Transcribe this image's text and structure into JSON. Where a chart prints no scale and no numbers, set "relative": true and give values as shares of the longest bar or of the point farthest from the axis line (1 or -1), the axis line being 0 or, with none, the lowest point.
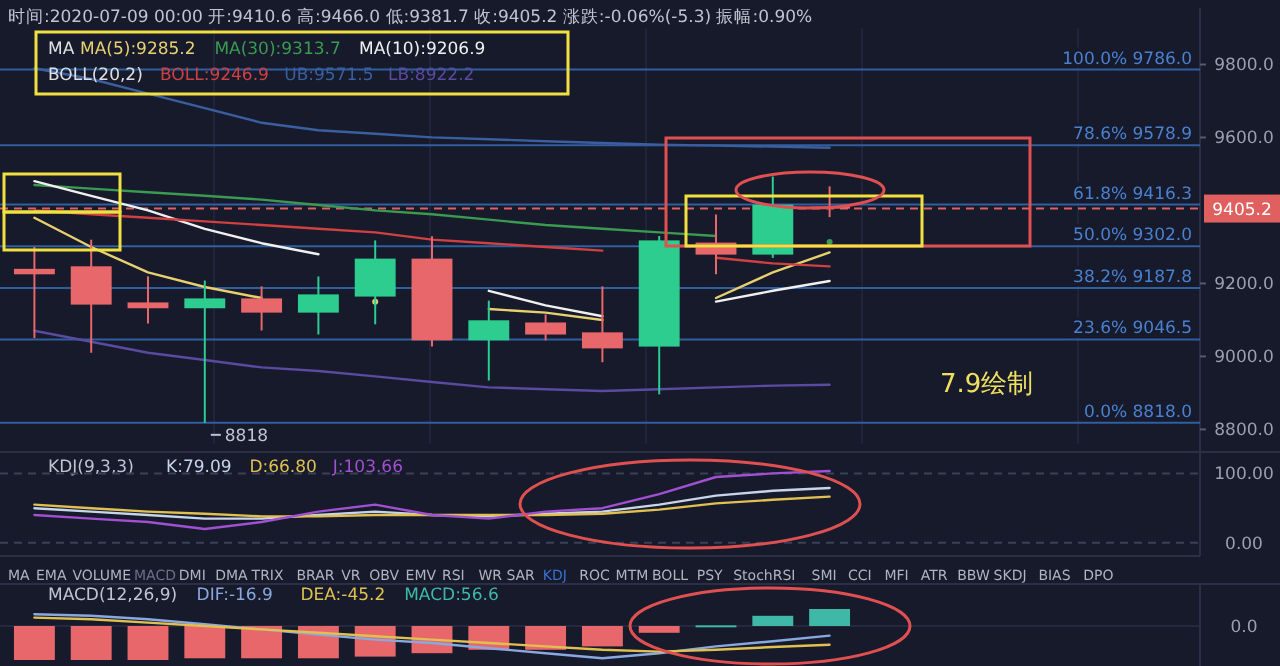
{
  "chart_data": [
    {
      "type": "candlestick",
      "title": "时间:2020-07-09 00:00 开:9410.6 高:9466.0 低:9381.7 收:9405.2 涨跌:-0.06%(-5.3) 振幅:0.90%",
      "categories": [
        null,
        null,
        null,
        null,
        null,
        null,
        null,
        null,
        null,
        null,
        null,
        null,
        null,
        null,
        null
      ],
      "ohlc": [
        [
          9240,
          9300,
          9050,
          9225
        ],
        [
          9247,
          9320,
          9010,
          9142
        ],
        [
          9148,
          9220,
          9090,
          9132
        ],
        [
          9132,
          9208,
          8818,
          9159
        ],
        [
          9159,
          9192,
          9071,
          9120
        ],
        [
          9120,
          9219,
          9060,
          9170
        ],
        [
          9164,
          9318,
          9088,
          9268
        ],
        [
          9268,
          9329,
          9027,
          9044
        ],
        [
          9044,
          9153,
          8934,
          9099
        ],
        [
          9093,
          9115,
          9044,
          9060
        ],
        [
          9066,
          9192,
          8984,
          9022
        ],
        [
          9027,
          9330,
          8896,
          9318
        ],
        [
          9312,
          9389,
          9225,
          9279
        ],
        [
          9279,
          9493,
          9270,
          9416
        ],
        [
          9410.6,
          9466.0,
          9381.7,
          9405.2
        ]
      ],
      "colors": [
        "#e8676a",
        "#e8676a",
        "#e8676a",
        "#2dcc8f",
        "#e8676a",
        "#2dcc8f",
        "#2dcc8f",
        "#e8676a",
        "#2dcc8f",
        "#e8676a",
        "#e8676a",
        "#2dcc8f",
        "#e8676a",
        "#2dcc8f",
        "#e8676a"
      ],
      "series": [
        {
          "name": "MA(5):9285.2",
          "type": "line",
          "color": "#e8d070",
          "values": [
            9380,
            9300,
            9230,
            9190,
            9160,
            null,
            9150,
            null,
            9130,
            9120,
            9100,
            null,
            9160,
            9230,
            9285.2
          ]
        },
        {
          "name": "MA(30):9313.7",
          "type": "line",
          "color": "#3a9a50",
          "values": [
            9470,
            9460,
            9450,
            9440,
            9430,
            9415,
            9400,
            9390,
            9375,
            9360,
            9350,
            9340,
            9330,
            null,
            9313.7
          ]
        },
        {
          "name": "MA(10):9206.9",
          "type": "line",
          "color": "#f0f0f0",
          "values": [
            9480,
            9440,
            9400,
            9350,
            9310,
            9280,
            null,
            null,
            9180,
            9140,
            9110,
            null,
            9150,
            9180,
            9206.9
          ]
        },
        {
          "name": "BOLL:9246.9",
          "type": "line",
          "color": "#d04040",
          "values": [
            9400,
            9390,
            9380,
            9370,
            9360,
            9350,
            9340,
            9320,
            9310,
            9300,
            9290,
            null,
            9270,
            9255,
            9246.9
          ]
        },
        {
          "name": "UB:9571.5",
          "type": "line",
          "color": "#3a5fa0",
          "values": [
            9790,
            9760,
            9720,
            9680,
            9640,
            9620,
            9610,
            9600,
            9595,
            9590,
            9585,
            9580,
            9578,
            9575,
            9571.5
          ]
        },
        {
          "name": "LB:8922.2",
          "type": "line",
          "color": "#5a4aa0",
          "values": [
            9070,
            9040,
            9010,
            8990,
            8970,
            8960,
            8945,
            8930,
            8915,
            8910,
            8905,
            8910,
            8915,
            8920,
            8922.2
          ]
        }
      ],
      "ylim": [
        8760,
        9900
      ],
      "yticks": [
        {
          "value": 8800,
          "label": "8800.0"
        },
        {
          "value": 9000,
          "label": "9000.0"
        },
        {
          "value": 9200,
          "label": "9200.0"
        },
        {
          "value": 9600,
          "label": "9600.0"
        },
        {
          "value": 9800,
          "label": "9800.0"
        }
      ],
      "ref_lines": [
        {
          "axis": "y",
          "value": 9786,
          "label": "100.0% 9786.0",
          "color": "#2f5f9f"
        },
        {
          "axis": "y",
          "value": 9578.9,
          "label": "78.6% 9578.9",
          "color": "#2f5f9f"
        },
        {
          "axis": "y",
          "value": 9416.3,
          "label": "61.8% 9416.3",
          "color": "#2f5f9f"
        },
        {
          "axis": "y",
          "value": 9302.0,
          "label": "50.0% 9302.0",
          "color": "#2f5f9f"
        },
        {
          "axis": "y",
          "value": 9187.8,
          "label": "38.2% 9187.8",
          "color": "#2f5f9f"
        },
        {
          "axis": "y",
          "value": 9046.5,
          "label": "23.6% 9046.5",
          "color": "#2f5f9f"
        },
        {
          "axis": "y",
          "value": 8818.0,
          "label": "0.0% 8818.0",
          "color": "#2f5f9f"
        },
        {
          "axis": "y",
          "value": 9405.2,
          "label": "9405.2",
          "color": "#e06060",
          "line_style": "dashed"
        }
      ],
      "annotations": [
        "MA",
        "BOLL(20,2)",
        {
          "text": "8818",
          "y": 8818
        },
        "7.9绘制"
      ],
      "legend": "top",
      "grid": "x"
    },
    {
      "type": "line",
      "title": "KDJ(9,3,3)",
      "categories": [
        null,
        null,
        null,
        null,
        null,
        null,
        null,
        null,
        null,
        null,
        null,
        null,
        null,
        null,
        null
      ],
      "series": [
        {
          "name": "K:79.09",
          "color": "#c8d4ea",
          "values": [
            50,
            45,
            40,
            35,
            35,
            40,
            45,
            40,
            38,
            42,
            45,
            55,
            68,
            75,
            79.09
          ]
        },
        {
          "name": "D:66.80",
          "color": "#e0c050",
          "values": [
            55,
            50,
            45,
            42,
            38,
            38,
            40,
            40,
            40,
            40,
            42,
            48,
            57,
            62,
            66.8
          ]
        },
        {
          "name": "J:103.66",
          "color": "#a050d0",
          "values": [
            40,
            35,
            30,
            20,
            30,
            45,
            55,
            40,
            35,
            45,
            50,
            70,
            95,
            100,
            103.66
          ]
        }
      ],
      "ylim": [
        -19,
        131
      ],
      "yticks": [
        {
          "value": 0,
          "label": "0.00"
        },
        {
          "value": 100,
          "label": "100.00"
        }
      ],
      "annotations": [
        "MA",
        "EMA",
        "VOLUME",
        "MACD",
        "DMI",
        "DMA",
        "TRIX",
        "BRAR",
        "VR",
        "OBV",
        "EMV",
        "RSI",
        "WR",
        "SAR",
        "KDJ",
        "ROC",
        "MTM",
        "BOLL",
        "PSY",
        "StochRSI",
        "SMI",
        "CCI",
        "MFI",
        "ATR",
        "BBW",
        "SKDJ",
        "BIAS",
        "DPO"
      ],
      "legend": "top left",
      "grid": "y"
    },
    {
      "type": "bar",
      "title": "MACD(12,26,9)",
      "relative": true,
      "categories": [
        null,
        null,
        null,
        null,
        null,
        null,
        null,
        null,
        null,
        null,
        null,
        null,
        null,
        null,
        null
      ],
      "series": [
        {
          "name": "MACD:56.6",
          "type": "bar",
          "colors": [
            "#e8676a",
            "#e8676a",
            "#e8676a",
            "#e8676a",
            "#e8676a",
            "#e8676a",
            "#e8676a",
            "#e8676a",
            "#e8676a",
            "#e8676a",
            "#e8676a",
            "#e8676a",
            "#3fb8a8",
            "#3fb8a8",
            "#3fb8a8"
          ],
          "values": [
            -1,
            -1,
            -1,
            -0.95,
            -0.95,
            -0.95,
            -0.9,
            -0.8,
            -0.7,
            -0.7,
            -0.6,
            -0.2,
            0.02,
            0.3,
            0.5
          ]
        },
        {
          "name": "DIF:-16.9",
          "type": "line",
          "color": "#8aa8e0",
          "values": [
            0.35,
            0.3,
            0.2,
            0.05,
            -0.1,
            -0.25,
            -0.4,
            -0.5,
            -0.65,
            -0.8,
            -0.95,
            -0.8,
            -0.6,
            -0.45,
            -0.28
          ]
        },
        {
          "name": "DEA:-45.2",
          "type": "line",
          "color": "#e0c050",
          "values": [
            0.25,
            0.2,
            0.1,
            0,
            -0.1,
            -0.2,
            -0.3,
            -0.4,
            -0.5,
            -0.6,
            -0.7,
            -0.75,
            -0.7,
            -0.62,
            -0.55
          ]
        }
      ],
      "ref_lines": [
        {
          "axis": "y",
          "value": 0,
          "label": "0.0",
          "color": "#2a2f45"
        }
      ],
      "legend": "top"
    }
  ]
}
